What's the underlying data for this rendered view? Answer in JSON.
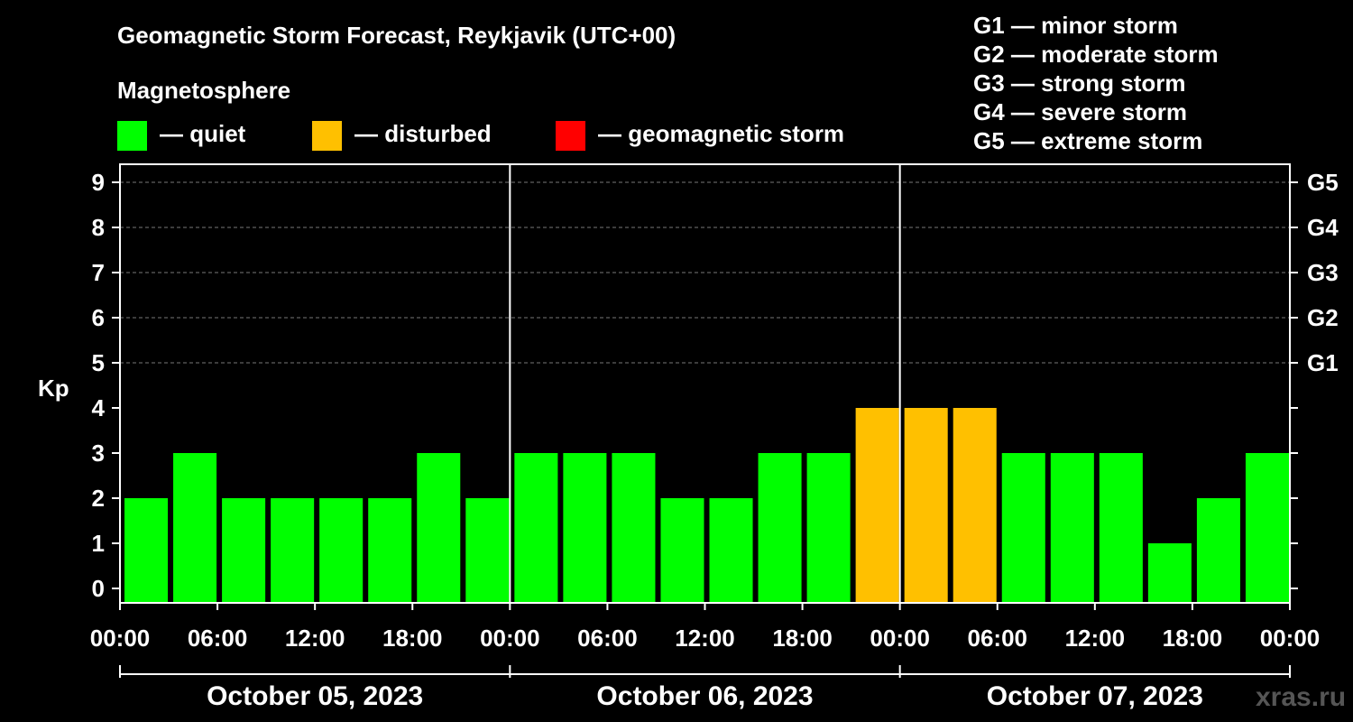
{
  "title": "Geomagnetic Storm Forecast, Reykjavik (UTC+00)",
  "legend": {
    "heading": "Magnetosphere",
    "items": [
      {
        "label": "— quiet",
        "color": "#00ff00"
      },
      {
        "label": "— disturbed",
        "color": "#ffc000"
      },
      {
        "label": "— geomagnetic storm",
        "color": "#ff0000"
      }
    ]
  },
  "storm_scale": [
    "G1 — minor storm",
    "G2 — moderate storm",
    "G3 — strong storm",
    "G4 — severe storm",
    "G5 — extreme storm"
  ],
  "watermark": "xras.ru",
  "chart_data": {
    "type": "bar",
    "ylabel": "Kp",
    "ylim": [
      0,
      9
    ],
    "yticks": [
      "0",
      "1",
      "2",
      "3",
      "4",
      "5",
      "6",
      "7",
      "8",
      "9"
    ],
    "right_axis": [
      {
        "kp": 5,
        "label": "G1"
      },
      {
        "kp": 6,
        "label": "G2"
      },
      {
        "kp": 7,
        "label": "G3"
      },
      {
        "kp": 8,
        "label": "G4"
      },
      {
        "kp": 9,
        "label": "G5"
      }
    ],
    "xticks": [
      "00:00",
      "06:00",
      "12:00",
      "18:00",
      "00:00",
      "06:00",
      "12:00",
      "18:00",
      "00:00",
      "06:00",
      "12:00",
      "18:00",
      "00:00"
    ],
    "days": [
      "October 05, 2023",
      "October 06, 2023",
      "October 07, 2023"
    ],
    "grid": true,
    "interval_hours": 3,
    "values": [
      2,
      3,
      2,
      2,
      2,
      2,
      3,
      2,
      3,
      3,
      3,
      2,
      2,
      3,
      3,
      4,
      4,
      4,
      3,
      3,
      3,
      1,
      2,
      3
    ],
    "colors": {
      "quiet": "#00ff00",
      "disturbed": "#ffc000",
      "storm": "#ff0000"
    }
  }
}
